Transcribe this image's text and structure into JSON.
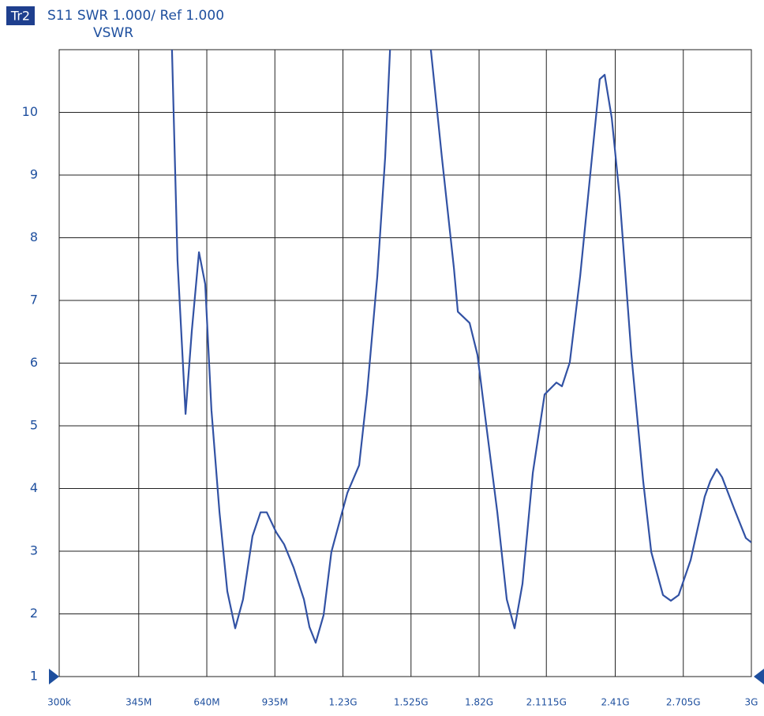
{
  "chart_data": {
    "type": "line",
    "trace_label": "Tr2",
    "title": "S11  SWR 1.000/ Ref 1.000",
    "subtitle": "VSWR",
    "x": [
      489000000,
      513000000,
      548000000,
      575000000,
      606000000,
      633000000,
      660000000,
      695000000,
      729000000,
      763000000,
      797000000,
      838000000,
      873000000,
      900000000,
      941000000,
      975000000,
      1016000000,
      1061000000,
      1085000000,
      1112000000,
      1146000000,
      1180000000,
      1249000000,
      1300000000,
      1334000000,
      1379000000,
      1413000000,
      1434000000,
      1520000000,
      1611000000,
      1659000000,
      1711000000,
      1728000000,
      1779000000,
      1813000000,
      1847000000,
      1899000000,
      1940000000,
      1974000000,
      2008000000,
      2053000000,
      2104000000,
      2155000000,
      2179000000,
      2213000000,
      2258000000,
      2309000000,
      2343000000,
      2364000000,
      2395000000,
      2429000000,
      2480000000,
      2531000000,
      2566000000,
      2617000000,
      2651000000,
      2685000000,
      2737000000,
      2798000000,
      2822000000,
      2850000000,
      2873000000,
      2925000000,
      2976000000,
      3000000000
    ],
    "series": [
      {
        "name": "S11",
        "color": "#3252a4",
        "values": [
          11,
          7.64,
          5.19,
          6.51,
          7.77,
          7.26,
          5.25,
          3.62,
          2.36,
          1.77,
          2.23,
          3.24,
          3.62,
          3.62,
          3.3,
          3.11,
          2.74,
          2.23,
          1.79,
          1.54,
          1.98,
          2.99,
          3.93,
          4.37,
          5.5,
          7.39,
          9.28,
          11,
          null,
          11,
          9.28,
          7.52,
          6.82,
          6.64,
          6.13,
          5.13,
          3.62,
          2.23,
          1.77,
          2.48,
          4.25,
          5.5,
          5.69,
          5.63,
          6.01,
          7.39,
          9.28,
          10.53,
          10.6,
          9.91,
          8.65,
          6.13,
          4.12,
          2.99,
          2.3,
          2.21,
          2.3,
          2.86,
          3.87,
          4.12,
          4.31,
          4.18,
          3.68,
          3.21,
          3.14
        ]
      }
    ],
    "xlim": [
      300000,
      3000000000
    ],
    "xticks": [
      {
        "value": 300000,
        "label": "300k"
      },
      {
        "value": 345000000,
        "label": "345M"
      },
      {
        "value": 640000000,
        "label": "640M"
      },
      {
        "value": 935000000,
        "label": "935M"
      },
      {
        "value": 1230000000,
        "label": "1.23G"
      },
      {
        "value": 1525000000,
        "label": "1.525G"
      },
      {
        "value": 1820000000,
        "label": "1.82G"
      },
      {
        "value": 2111500000,
        "label": "2.1115G"
      },
      {
        "value": 2410000000,
        "label": "2.41G"
      },
      {
        "value": 2705000000,
        "label": "2.705G"
      },
      {
        "value": 3000000000,
        "label": "3G"
      }
    ],
    "ylim": [
      1,
      11
    ],
    "yticks": [
      1,
      2,
      3,
      4,
      5,
      6,
      7,
      8,
      9,
      10
    ],
    "grid": true
  }
}
